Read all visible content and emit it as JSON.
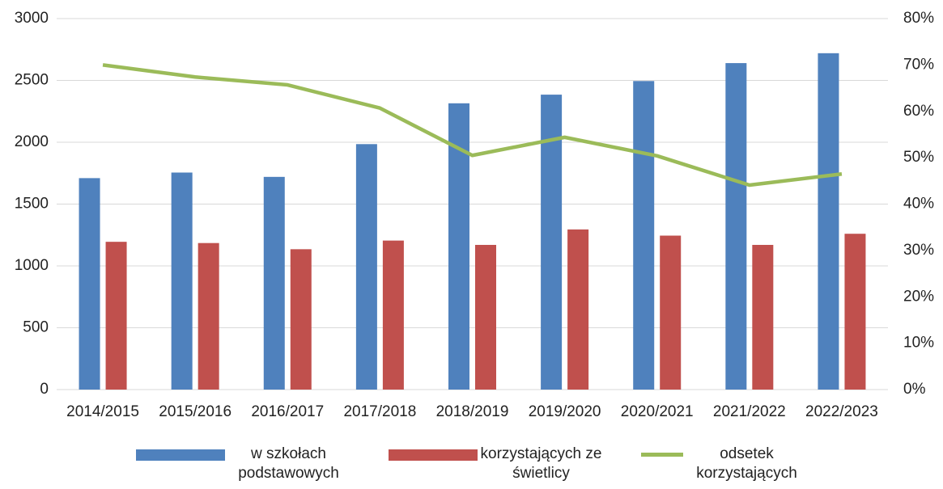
{
  "chart_data": {
    "type": "bar-line",
    "categories": [
      "2014/2015",
      "2015/2016",
      "2016/2017",
      "2017/2018",
      "2018/2019",
      "2019/2020",
      "2020/2021",
      "2021/2022",
      "2022/2023"
    ],
    "series": [
      {
        "name": "w szkołach podstawowych",
        "type": "bar",
        "color": "#4f81bd",
        "values": [
          1710,
          1755,
          1720,
          1985,
          2315,
          2385,
          2495,
          2640,
          2720
        ]
      },
      {
        "name": "korzystających ze świetlicy",
        "type": "bar",
        "color": "#c0504d",
        "values": [
          1195,
          1185,
          1135,
          1205,
          1170,
          1295,
          1245,
          1170,
          1260
        ]
      },
      {
        "name": "odsetek korzystających",
        "type": "line",
        "axis": "y2",
        "color": "#9bbb59",
        "values": [
          70,
          67.4,
          65.7,
          60.7,
          50.5,
          54.4,
          50.4,
          44.1,
          46.5
        ]
      }
    ],
    "ylim": [
      0,
      3000
    ],
    "yticks": [
      0,
      500,
      1000,
      1500,
      2000,
      2500,
      3000
    ],
    "y2lim": [
      0,
      80
    ],
    "y2ticks": [
      {
        "value": 0,
        "label": "0%"
      },
      {
        "value": 10,
        "label": "10%"
      },
      {
        "value": 20,
        "label": "20%"
      },
      {
        "value": 30,
        "label": "30%"
      },
      {
        "value": 40,
        "label": "40%"
      },
      {
        "value": 50,
        "label": "50%"
      },
      {
        "value": 60,
        "label": "60%"
      },
      {
        "value": 70,
        "label": "70%"
      },
      {
        "value": 80,
        "label": "80%"
      }
    ],
    "grid": true
  }
}
